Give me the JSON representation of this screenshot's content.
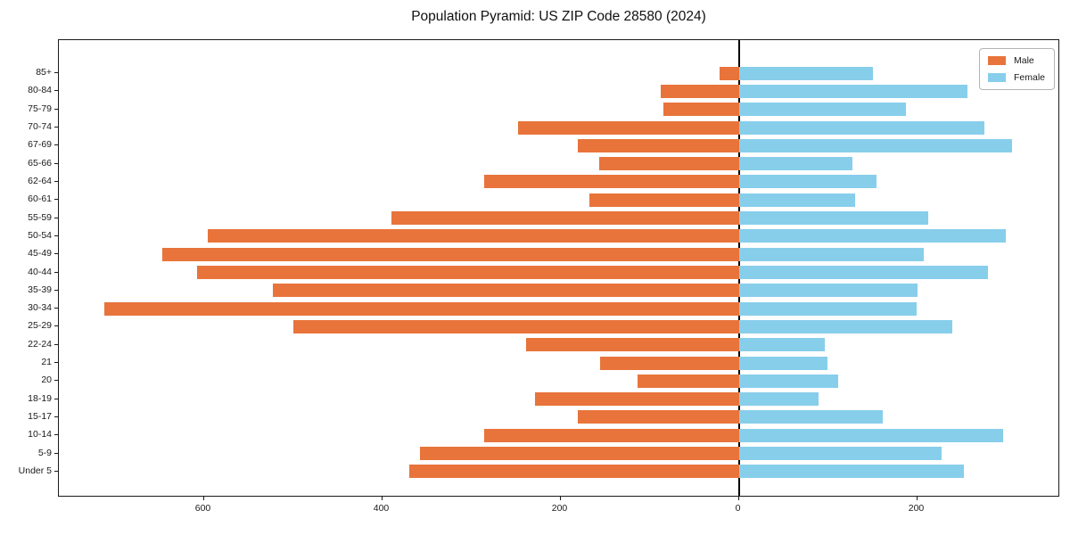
{
  "title": "Population Pyramid: US ZIP Code 28580 (2024)",
  "legend": {
    "male": "Male",
    "female": "Female"
  },
  "colors": {
    "male": "#e8743b",
    "female": "#87ceeb",
    "axis": "#1a1a1a",
    "zero_line": "#000000"
  },
  "chart_data": {
    "type": "bar",
    "subtype": "population-pyramid",
    "orientation": "horizontal",
    "title": "Population Pyramid: US ZIP Code 28580 (2024)",
    "categories": [
      "85+",
      "80-84",
      "75-79",
      "70-74",
      "67-69",
      "65-66",
      "62-64",
      "60-61",
      "55-59",
      "50-54",
      "45-49",
      "40-44",
      "35-39",
      "30-34",
      "25-29",
      "22-24",
      "21",
      "20",
      "18-19",
      "15-17",
      "10-14",
      "5-9",
      "Under 5"
    ],
    "series": [
      {
        "name": "Male",
        "side": "left",
        "color": "#e8743b",
        "values": [
          22,
          88,
          85,
          248,
          181,
          157,
          286,
          168,
          390,
          596,
          647,
          608,
          523,
          712,
          500,
          239,
          156,
          114,
          229,
          181,
          286,
          358,
          370
        ]
      },
      {
        "name": "Female",
        "side": "right",
        "color": "#87ceeb",
        "values": [
          150,
          256,
          187,
          275,
          306,
          127,
          154,
          130,
          212,
          299,
          207,
          279,
          200,
          199,
          239,
          96,
          99,
          111,
          89,
          161,
          296,
          227,
          252
        ]
      }
    ],
    "x_ticks": [
      {
        "label": "600",
        "value": -600
      },
      {
        "label": "400",
        "value": -400
      },
      {
        "label": "200",
        "value": -200
      },
      {
        "label": "0",
        "value": 0
      },
      {
        "label": "200",
        "value": 200
      }
    ],
    "xlim": [
      -762,
      361
    ],
    "grid": false,
    "legend_position": "upper right",
    "zero_line": true
  }
}
